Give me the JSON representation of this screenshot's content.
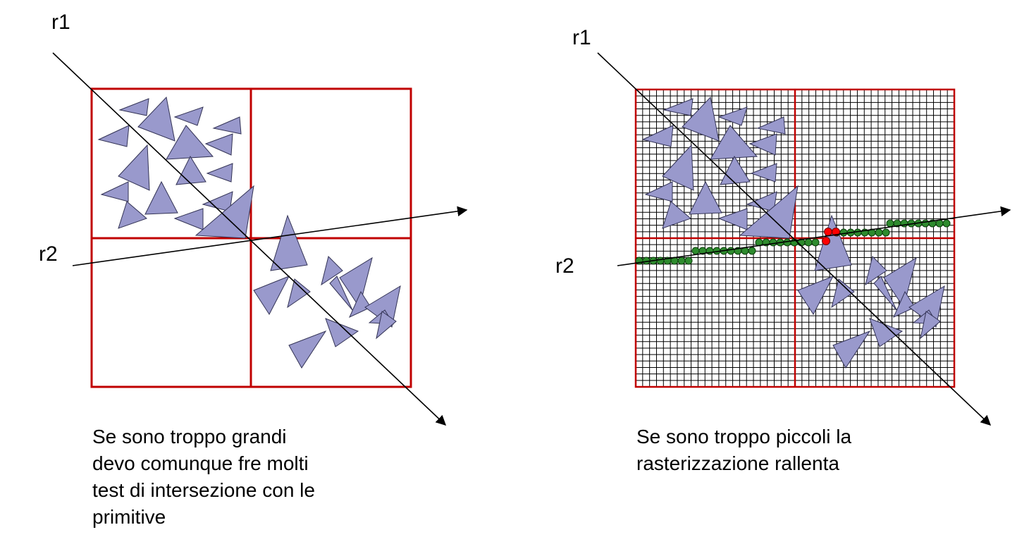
{
  "left_diagram": {
    "ray1_label": "r1",
    "ray2_label": "r2",
    "caption_lines": [
      "Se sono troppo grandi",
      "devo comunque fre molti",
      "test di intersezione con le",
      "primitive"
    ]
  },
  "right_diagram": {
    "ray1_label": "r1",
    "ray2_label": "r2",
    "caption_lines": [
      "Se sono troppo piccoli la",
      "rasterizzazione rallenta"
    ]
  },
  "colors": {
    "grid_red": "#c00000",
    "triangle_fill": "#9999cc",
    "visited_cell_dot": "#2e8b2e",
    "hit_cell_dot": "#ff0000"
  }
}
